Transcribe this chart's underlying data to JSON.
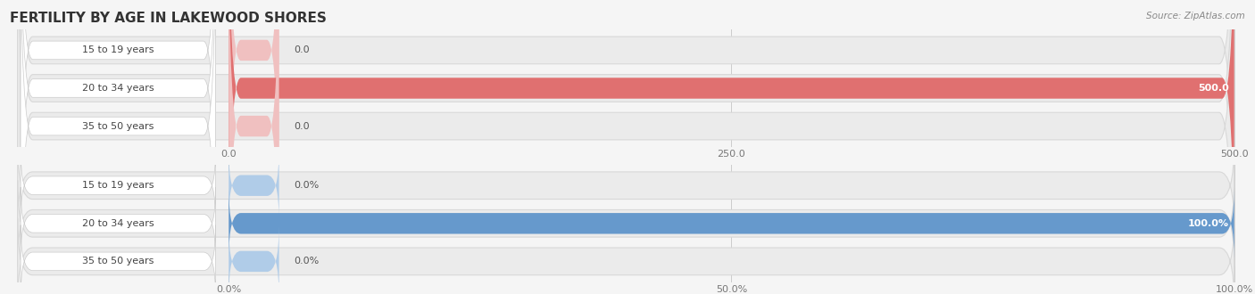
{
  "title": "FERTILITY BY AGE IN LAKEWOOD SHORES",
  "source": "Source: ZipAtlas.com",
  "top_chart": {
    "categories": [
      "15 to 19 years",
      "20 to 34 years",
      "35 to 50 years"
    ],
    "values": [
      0.0,
      500.0,
      0.0
    ],
    "max_val": 500,
    "xticks": [
      0.0,
      250.0,
      500.0
    ],
    "bar_color": "#e07070",
    "bar_stub_color": "#f0c0c0",
    "bar_bg_color": "#ebebeb",
    "bar_bg_edge": "#d8d8d8",
    "value_labels": [
      "0.0",
      "500.0",
      "0.0"
    ]
  },
  "bottom_chart": {
    "categories": [
      "15 to 19 years",
      "20 to 34 years",
      "35 to 50 years"
    ],
    "values": [
      0.0,
      100.0,
      0.0
    ],
    "max_val": 100,
    "xticks": [
      0.0,
      50.0,
      100.0
    ],
    "xtick_labels": [
      "0.0%",
      "50.0%",
      "100.0%"
    ],
    "bar_color": "#6699cc",
    "bar_stub_color": "#b0cce8",
    "bar_bg_color": "#ebebeb",
    "bar_bg_edge": "#d8d8d8",
    "value_labels": [
      "0.0%",
      "100.0%",
      "0.0%"
    ]
  },
  "bg_color": "#f5f5f5",
  "label_text_color": "#444444",
  "title_color": "#333333",
  "source_color": "#888888"
}
